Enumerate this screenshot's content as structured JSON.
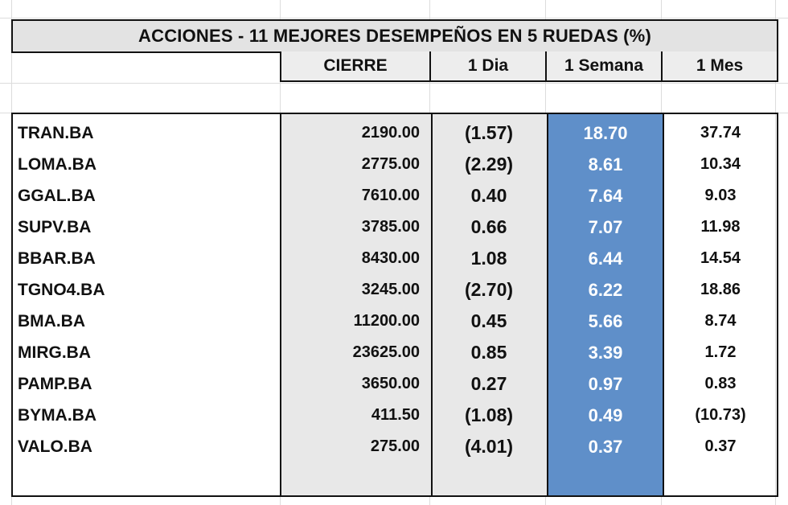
{
  "title": "ACCIONES   - 11  MEJORES DESEMPEÑOS EN 5 RUEDAS (%)",
  "columns": [
    "CIERRE",
    "1 Dia",
    "1 Semana",
    "1 Mes"
  ],
  "colors": {
    "semana_column": "#5f8fc9",
    "shaded_column": "#e8e8e8",
    "border": "#111111"
  },
  "rows": [
    {
      "ticker": "TRAN.BA",
      "cierre": "2190.00",
      "dia": "(1.57)",
      "semana": "18.70",
      "mes": "37.74"
    },
    {
      "ticker": "LOMA.BA",
      "cierre": "2775.00",
      "dia": "(2.29)",
      "semana": "8.61",
      "mes": "10.34"
    },
    {
      "ticker": "GGAL.BA",
      "cierre": "7610.00",
      "dia": "0.40",
      "semana": "7.64",
      "mes": "9.03"
    },
    {
      "ticker": "SUPV.BA",
      "cierre": "3785.00",
      "dia": "0.66",
      "semana": "7.07",
      "mes": "11.98"
    },
    {
      "ticker": "BBAR.BA",
      "cierre": "8430.00",
      "dia": "1.08",
      "semana": "6.44",
      "mes": "14.54"
    },
    {
      "ticker": "TGNO4.BA",
      "cierre": "3245.00",
      "dia": "(2.70)",
      "semana": "6.22",
      "mes": "18.86"
    },
    {
      "ticker": "BMA.BA",
      "cierre": "11200.00",
      "dia": "0.45",
      "semana": "5.66",
      "mes": "8.74"
    },
    {
      "ticker": "MIRG.BA",
      "cierre": "23625.00",
      "dia": "0.85",
      "semana": "3.39",
      "mes": "1.72"
    },
    {
      "ticker": "PAMP.BA",
      "cierre": "3650.00",
      "dia": "0.27",
      "semana": "0.97",
      "mes": "0.83"
    },
    {
      "ticker": "BYMA.BA",
      "cierre": "411.50",
      "dia": "(1.08)",
      "semana": "0.49",
      "mes": "(10.73)"
    },
    {
      "ticker": "VALO.BA",
      "cierre": "275.00",
      "dia": "(4.01)",
      "semana": "0.37",
      "mes": "0.37"
    }
  ]
}
